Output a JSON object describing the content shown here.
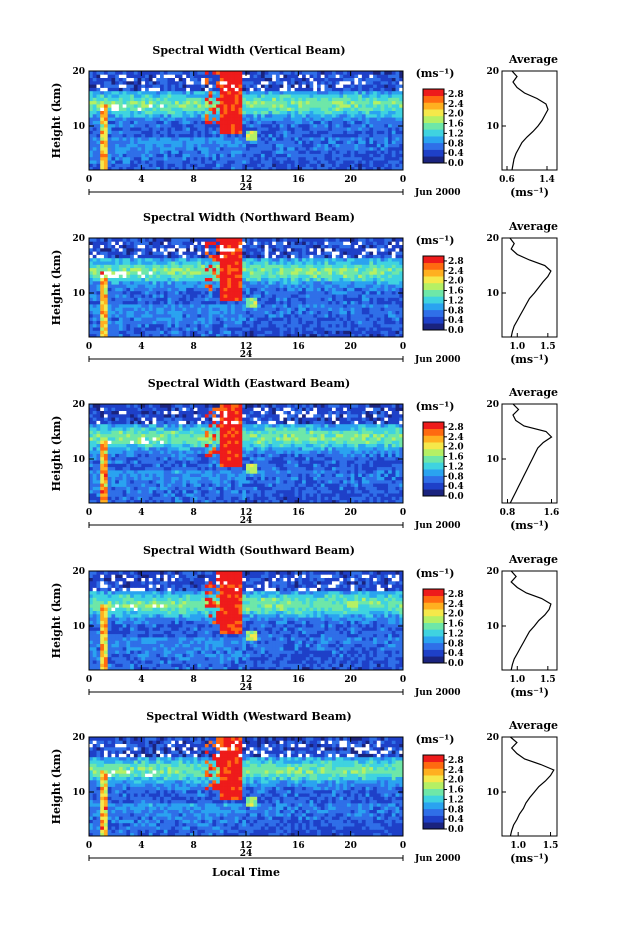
{
  "chart_data": {
    "type": "heatmap",
    "shared": {
      "xlabel": "Local Time",
      "ylabel": "Height (km)",
      "x_ticks": [
        "0",
        "4",
        "8",
        "12",
        "16",
        "20",
        "0"
      ],
      "day_label": "24",
      "month_label": "Jun 2000",
      "y_ticks": [
        "10",
        "20"
      ],
      "ylim": [
        2,
        20
      ],
      "xlim": [
        0,
        24
      ],
      "colorbar_unit": "(ms⁻¹)",
      "colorbar_ticks": [
        "0.0",
        "0.4",
        "0.8",
        "1.2",
        "1.6",
        "2.0",
        "2.4",
        "2.8"
      ],
      "colorbar_range": [
        0.0,
        3.0
      ],
      "colormap": [
        "#1a237e",
        "#1e40c8",
        "#2f6fe8",
        "#2aa3f0",
        "#3fd3e0",
        "#6ee7a8",
        "#b5f064",
        "#f5e84a",
        "#ffb020",
        "#ff6a10",
        "#ee1b1b"
      ],
      "average_title": "Average",
      "average_xlabel": "(ms⁻¹)"
    },
    "panels": [
      {
        "title": "Spectral Width (Vertical Beam)",
        "avg_xticks": [
          "0.6",
          "1.4"
        ],
        "avg_xlim": [
          0.5,
          1.6
        ],
        "avg_profile": {
          "height": [
            2,
            3,
            4,
            5,
            6,
            7,
            8,
            9,
            10,
            11,
            12,
            13,
            14,
            15,
            16,
            17,
            18,
            19,
            20
          ],
          "width": [
            0.7,
            0.72,
            0.74,
            0.78,
            0.84,
            0.9,
            1.0,
            1.12,
            1.22,
            1.3,
            1.36,
            1.42,
            1.38,
            1.2,
            0.95,
            0.8,
            0.72,
            0.8,
            0.7
          ]
        }
      },
      {
        "title": "Spectral Width (Northward Beam)",
        "avg_xticks": [
          "1.0",
          "1.5"
        ],
        "avg_xlim": [
          0.75,
          1.65
        ],
        "avg_profile": {
          "height": [
            2,
            3,
            4,
            5,
            6,
            7,
            8,
            9,
            10,
            11,
            12,
            13,
            14,
            15,
            16,
            17,
            18,
            19,
            20
          ],
          "width": [
            0.9,
            0.92,
            0.95,
            1.0,
            1.05,
            1.1,
            1.15,
            1.2,
            1.28,
            1.35,
            1.42,
            1.5,
            1.55,
            1.45,
            1.2,
            1.0,
            0.9,
            0.95,
            0.88
          ]
        }
      },
      {
        "title": "Spectral Width (Eastward Beam)",
        "avg_xticks": [
          "0.8",
          "1.6"
        ],
        "avg_xlim": [
          0.7,
          1.7
        ],
        "avg_profile": {
          "height": [
            2,
            3,
            4,
            5,
            6,
            7,
            8,
            9,
            10,
            11,
            12,
            13,
            14,
            15,
            16,
            17,
            18,
            19,
            20
          ],
          "width": [
            0.85,
            0.9,
            0.95,
            1.0,
            1.05,
            1.1,
            1.15,
            1.2,
            1.25,
            1.3,
            1.35,
            1.45,
            1.6,
            1.5,
            1.1,
            0.95,
            0.9,
            1.0,
            0.9
          ]
        }
      },
      {
        "title": "Spectral Width (Southward Beam)",
        "avg_xticks": [
          "1.0",
          "1.5"
        ],
        "avg_xlim": [
          0.75,
          1.65
        ],
        "avg_profile": {
          "height": [
            2,
            3,
            4,
            5,
            6,
            7,
            8,
            9,
            10,
            11,
            12,
            13,
            14,
            15,
            16,
            17,
            18,
            19,
            20
          ],
          "width": [
            0.9,
            0.92,
            0.95,
            1.0,
            1.05,
            1.1,
            1.15,
            1.2,
            1.28,
            1.35,
            1.45,
            1.52,
            1.55,
            1.4,
            1.15,
            1.0,
            0.9,
            0.98,
            0.9
          ]
        }
      },
      {
        "title": "Spectral Width (Westward Beam)",
        "avg_xticks": [
          "1.0",
          "1.5"
        ],
        "avg_xlim": [
          0.75,
          1.6
        ],
        "avg_profile": {
          "height": [
            2,
            3,
            4,
            5,
            6,
            7,
            8,
            9,
            10,
            11,
            12,
            13,
            14,
            15,
            16,
            17,
            18,
            19,
            20
          ],
          "width": [
            0.88,
            0.9,
            0.93,
            0.98,
            1.02,
            1.08,
            1.12,
            1.18,
            1.25,
            1.32,
            1.42,
            1.5,
            1.55,
            1.35,
            1.1,
            0.98,
            0.9,
            0.98,
            0.88
          ]
        }
      }
    ]
  }
}
